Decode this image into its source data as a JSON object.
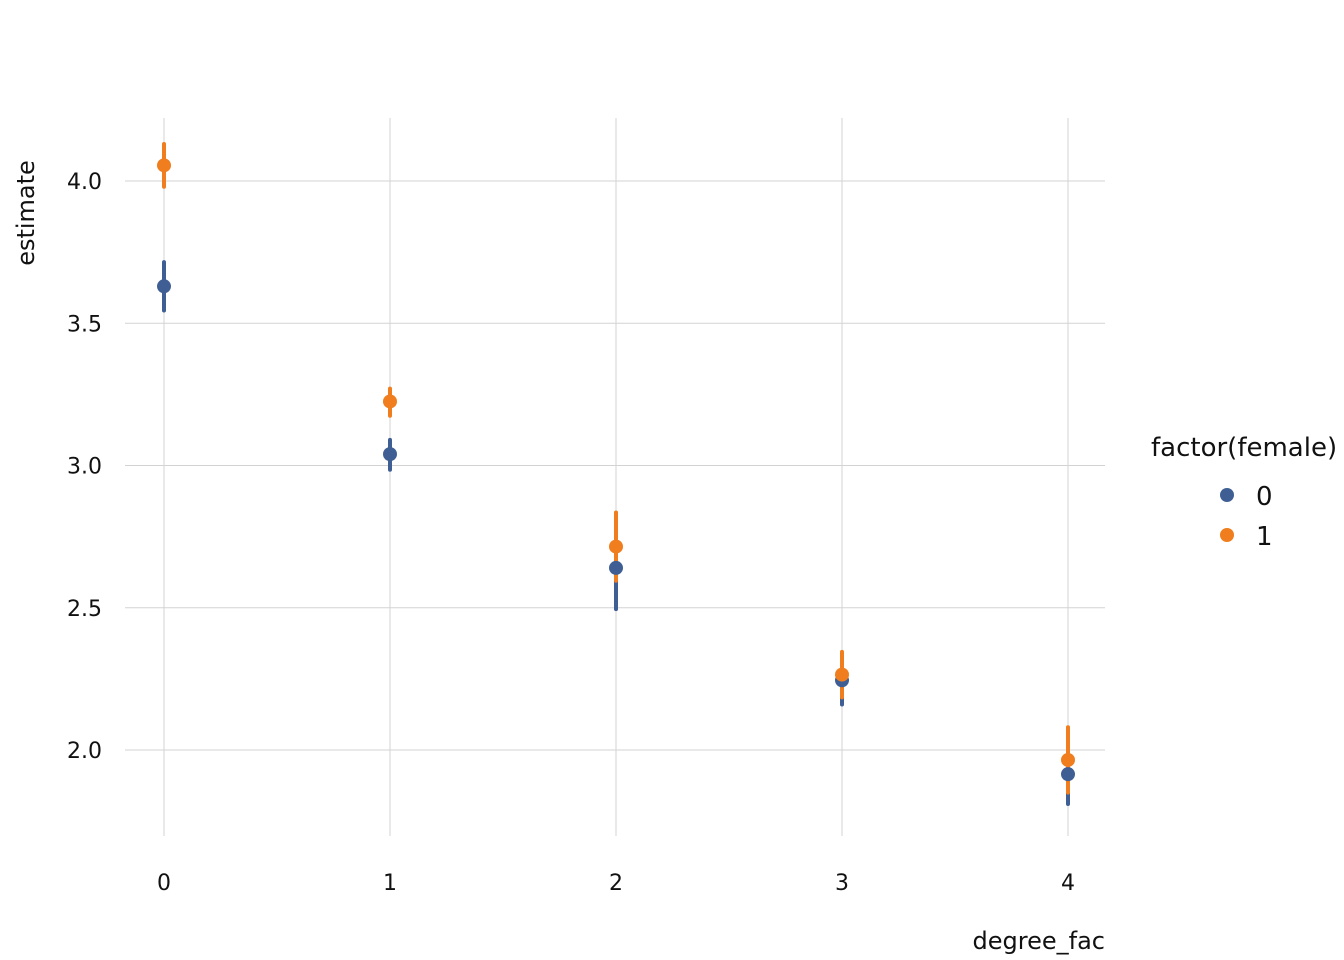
{
  "chart_data": {
    "type": "scatter",
    "xlabel": "degree_fac",
    "ylabel": "estimate",
    "categories": [
      "0",
      "1",
      "2",
      "3",
      "4"
    ],
    "ylim": [
      1.8,
      4.2
    ],
    "y_ticks": [
      "2.0",
      "2.5",
      "3.0",
      "3.5",
      "4.0"
    ],
    "grid": true,
    "legend": {
      "title": "factor(female)",
      "position": "right"
    },
    "series": [
      {
        "name": "0",
        "color": "#3f5f94",
        "values": [
          3.63,
          3.04,
          2.64,
          2.245,
          1.915
        ],
        "lower": [
          3.545,
          2.985,
          2.495,
          2.16,
          1.81
        ],
        "upper": [
          3.715,
          3.09,
          2.735,
          2.33,
          2.02
        ]
      },
      {
        "name": "1",
        "color": "#f07d1e",
        "values": [
          4.055,
          3.225,
          2.715,
          2.265,
          1.965
        ],
        "lower": [
          3.98,
          3.175,
          2.595,
          2.185,
          1.85
        ],
        "upper": [
          4.13,
          3.27,
          2.835,
          2.345,
          2.08
        ]
      }
    ]
  }
}
